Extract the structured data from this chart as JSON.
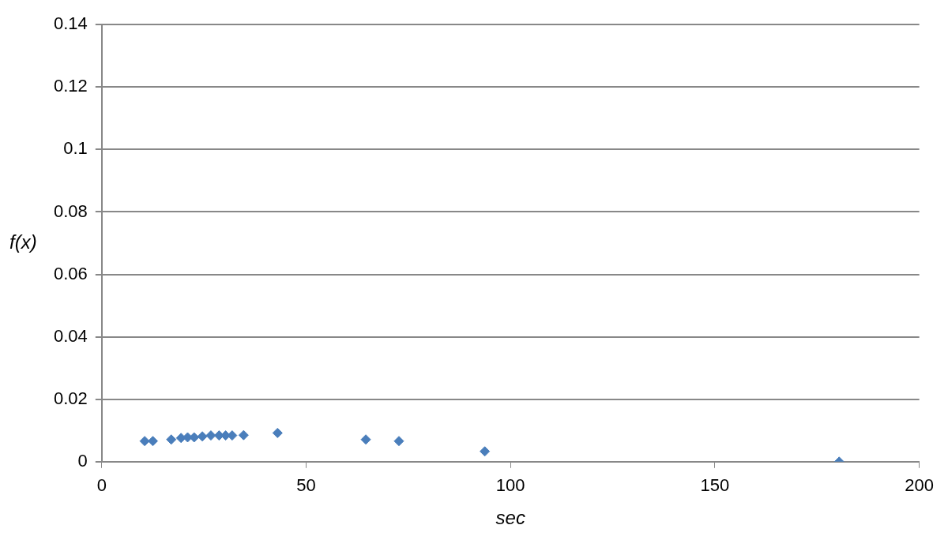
{
  "chart_data": {
    "type": "scatter",
    "xlabel": "sec",
    "ylabel": "f(x)",
    "x": [
      10.5,
      12.5,
      17,
      19.4,
      21,
      22.6,
      24.6,
      26.7,
      28.7,
      30.3,
      31.9,
      34.7,
      43,
      64.6,
      72.7,
      93.7,
      180.4
    ],
    "series": [
      {
        "color": "#4a7ebb",
        "values": [
          0.0066,
          0.0066,
          0.0071,
          0.0076,
          0.0078,
          0.0078,
          0.0081,
          0.0084,
          0.0084,
          0.0084,
          0.0084,
          0.0085,
          0.0092,
          0.0071,
          0.0066,
          0.0033,
          0
        ]
      }
    ],
    "xlim": [
      0,
      200
    ],
    "xticks": [
      0,
      50,
      100,
      150,
      200
    ],
    "ylim": [
      0,
      0.14
    ],
    "yticks": [
      0,
      0.02,
      0.04,
      0.06,
      0.08,
      0.1,
      0.12,
      0.14
    ],
    "grid": "y",
    "marker": "diamond",
    "legend": false
  }
}
